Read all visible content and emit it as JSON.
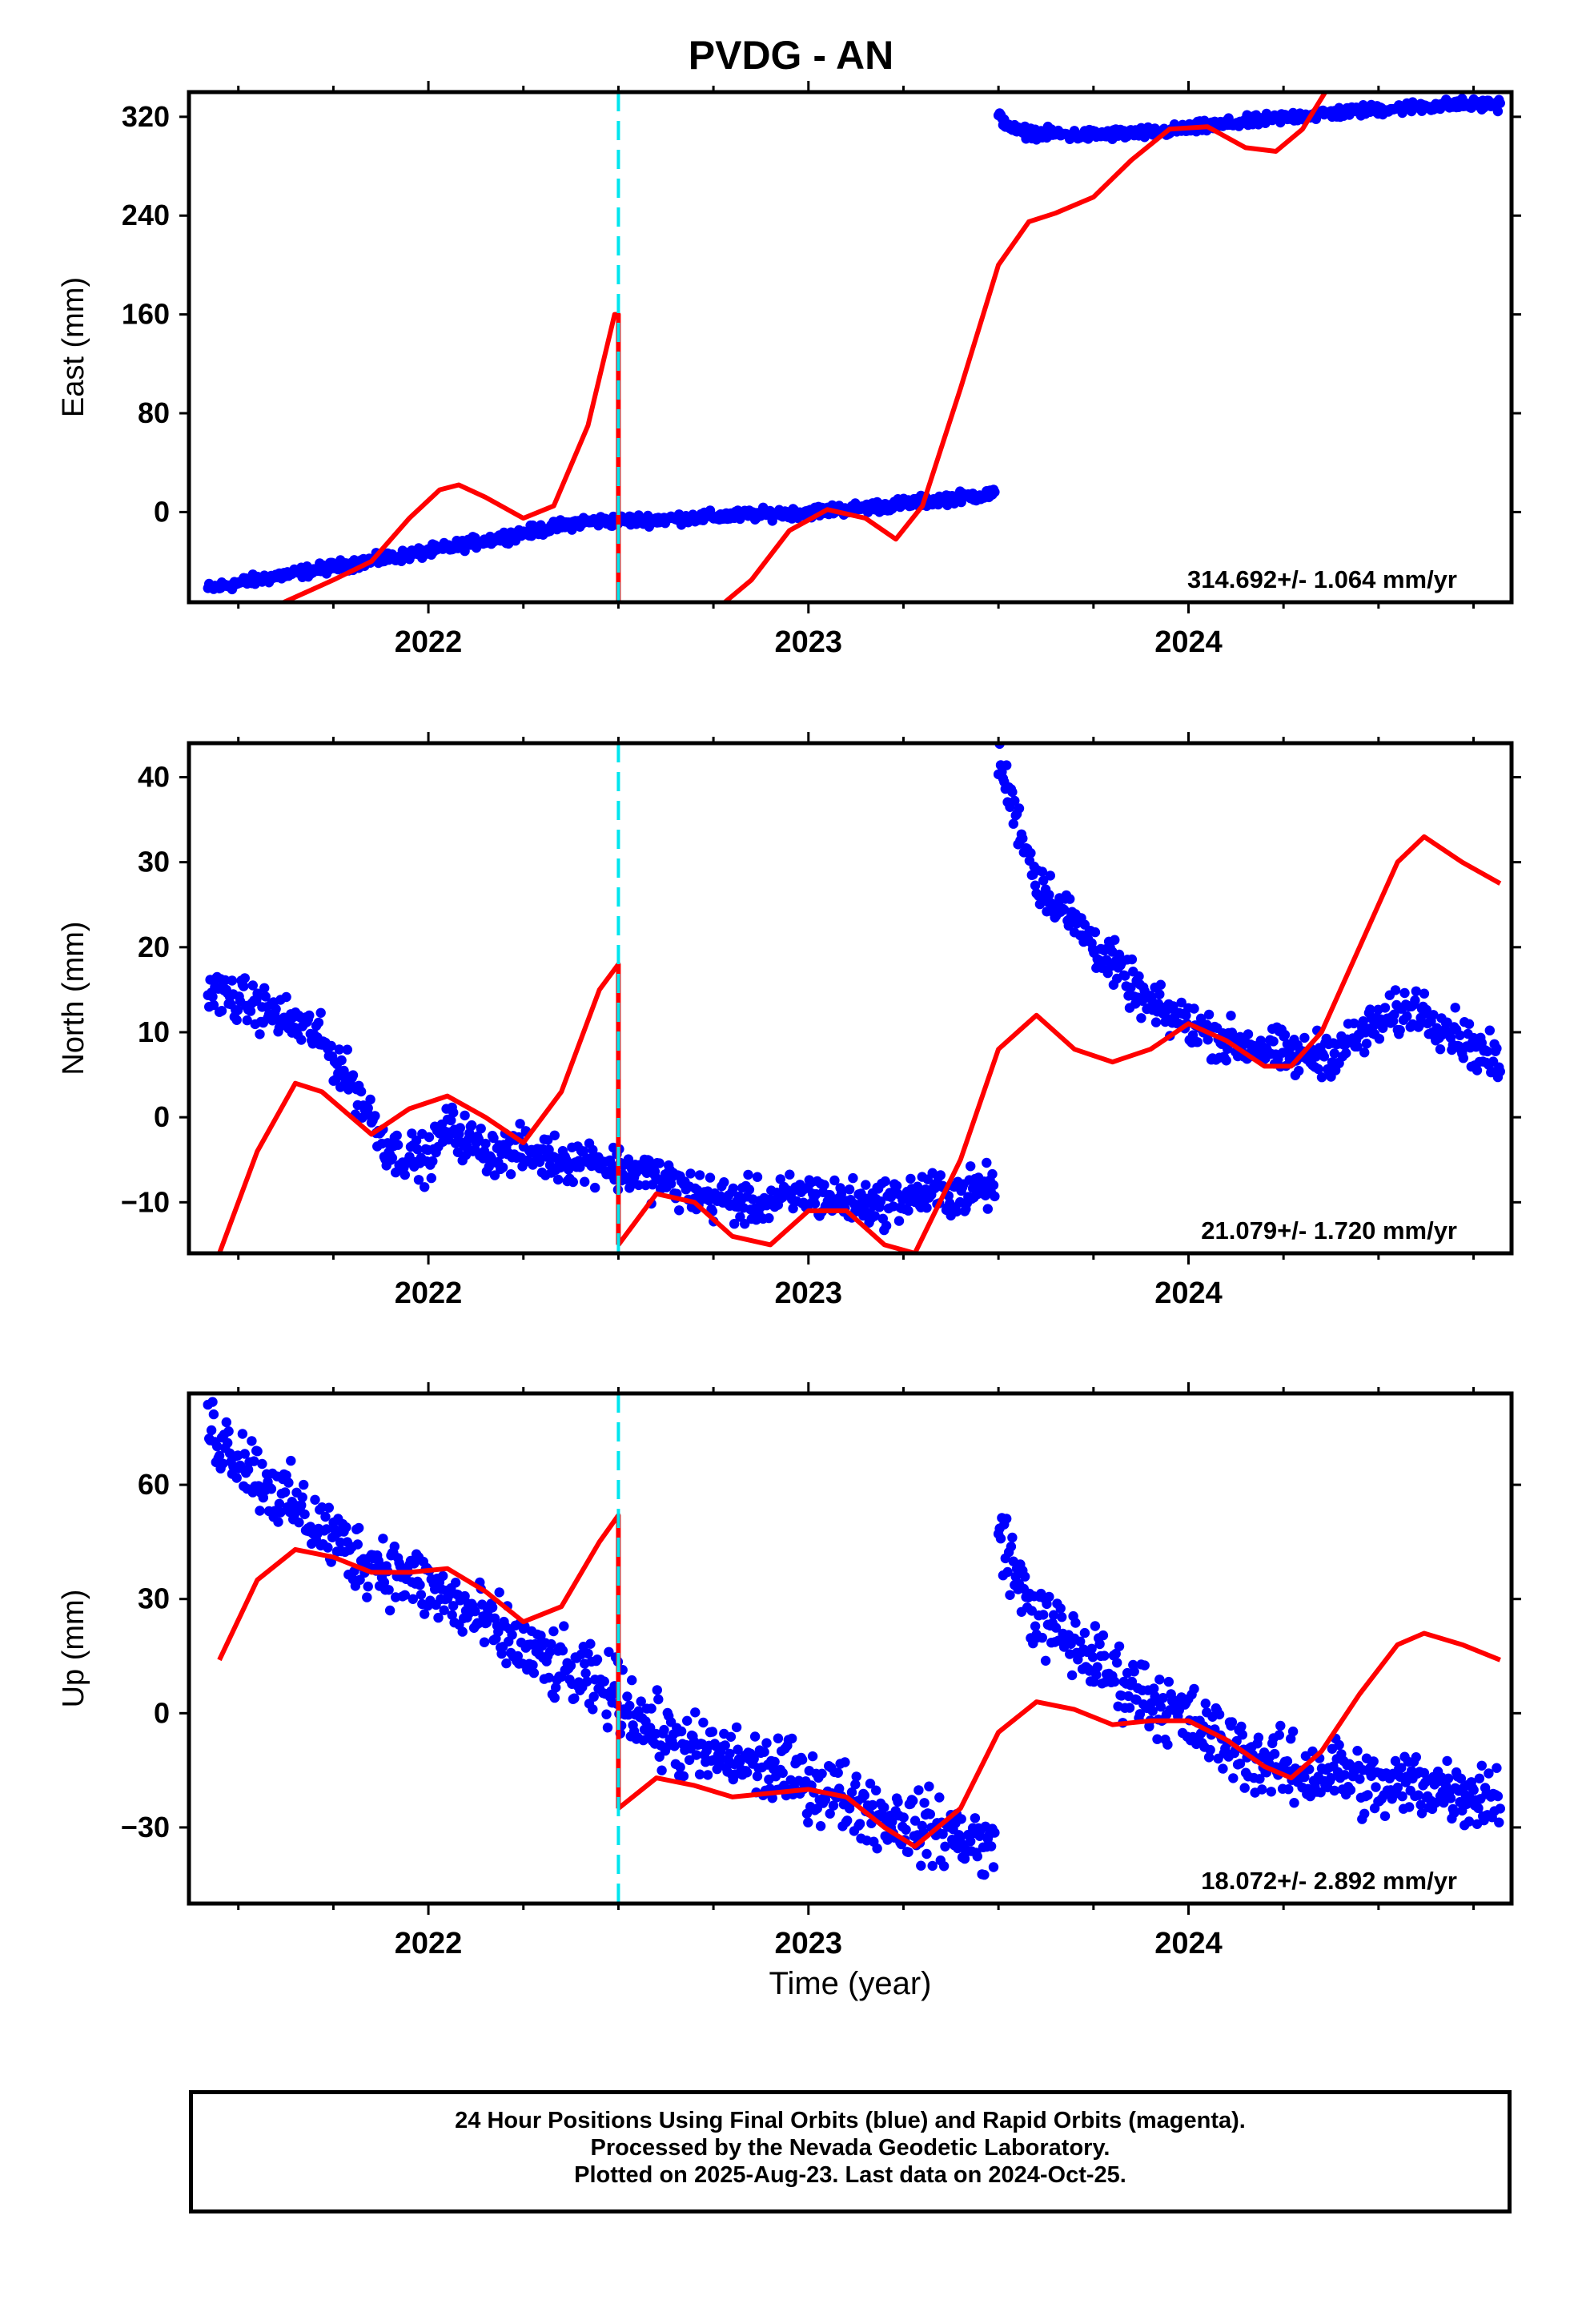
{
  "title": "PVDG - AN",
  "footer": {
    "line1": "24 Hour Positions Using Final Orbits (blue) and Rapid Orbits (magenta).",
    "line2": "Processed by the Nevada Geodetic Laboratory.",
    "line3": "Plotted on 2025-Aug-23. Last data on 2024-Oct-25."
  },
  "colors": {
    "data": "#0000ff",
    "model": "#ff0000",
    "event": "#00e5ee",
    "frame": "#000000"
  },
  "chart_data": [
    {
      "type": "scatter",
      "ylabel": "East (mm)",
      "rate_label": "314.692+/- 1.064 mm/yr",
      "xlim": [
        2021.37,
        2024.85
      ],
      "ylim": [
        -73,
        340
      ],
      "xticks": [
        "2022",
        "2023",
        "2024"
      ],
      "yticks": [
        0,
        80,
        160,
        240,
        320
      ],
      "event_x": 2022.5,
      "series": [
        {
          "kind": "points",
          "color": "#0000ff",
          "x": [
            2021.42,
            2021.6,
            2021.8,
            2022.0,
            2022.2,
            2022.4,
            2022.6,
            2022.8,
            2023.0,
            2023.2,
            2023.4,
            2023.49
          ],
          "y": [
            -62,
            -52,
            -42,
            -32,
            -20,
            -8,
            -6,
            -3,
            0,
            5,
            12,
            15
          ]
        },
        {
          "kind": "points",
          "color": "#0000ff",
          "x": [
            2023.5,
            2023.55,
            2023.7,
            2023.9,
            2024.1,
            2024.3,
            2024.5,
            2024.7,
            2024.82
          ],
          "y": [
            320,
            308,
            305,
            307,
            314,
            321,
            326,
            330,
            330
          ]
        },
        {
          "kind": "line",
          "color": "#ff0000",
          "x": [
            2021.62,
            2021.75,
            2021.85,
            2021.95,
            2022.03,
            2022.08,
            2022.15,
            2022.25,
            2022.33,
            2022.42,
            2022.49,
            2022.5,
            2022.5
          ],
          "y": [
            -73,
            -55,
            -40,
            -5,
            18,
            22,
            12,
            -5,
            5,
            70,
            160,
            160,
            -73
          ]
        },
        {
          "kind": "line",
          "color": "#ff0000",
          "x": [
            2022.78,
            2022.85,
            2022.95,
            2023.05,
            2023.15,
            2023.23,
            2023.3,
            2023.4,
            2023.5,
            2023.58,
            2023.65,
            2023.75,
            2023.85,
            2023.95,
            2024.05,
            2024.15,
            2024.23,
            2024.3,
            2024.37
          ],
          "y": [
            -73,
            -55,
            -15,
            2,
            -5,
            -22,
            5,
            100,
            200,
            235,
            242,
            255,
            285,
            310,
            312,
            295,
            292,
            310,
            345
          ]
        }
      ]
    },
    {
      "type": "scatter",
      "ylabel": "North (mm)",
      "rate_label": "21.079+/- 1.720 mm/yr",
      "xlim": [
        2021.37,
        2024.85
      ],
      "ylim": [
        -16,
        44
      ],
      "xticks": [
        "2022",
        "2023",
        "2024"
      ],
      "yticks": [
        -10,
        0,
        10,
        20,
        30,
        40
      ],
      "event_x": 2022.5,
      "series": [
        {
          "kind": "points",
          "color": "#0000ff",
          "x": [
            2021.42,
            2021.55,
            2021.7,
            2021.8,
            2021.9,
            2022.0,
            2022.05,
            2022.15,
            2022.25,
            2022.35,
            2022.45,
            2022.5,
            2022.6,
            2022.7,
            2022.8,
            2022.9,
            2023.0,
            2023.1,
            2023.2,
            2023.3,
            2023.4,
            2023.49
          ],
          "y": [
            15,
            13,
            10,
            4,
            -4,
            -5,
            -1,
            -4,
            -4,
            -5,
            -5,
            -6,
            -7,
            -9,
            -10,
            -10,
            -9,
            -10,
            -10,
            -9,
            -9,
            -8
          ]
        },
        {
          "kind": "points",
          "color": "#0000ff",
          "x": [
            2023.5,
            2023.55,
            2023.6,
            2023.7,
            2023.8,
            2023.9,
            2024.0,
            2024.1,
            2024.2,
            2024.3,
            2024.4,
            2024.5,
            2024.6,
            2024.7,
            2024.82
          ],
          "y": [
            42,
            35,
            28,
            23,
            18,
            13,
            11,
            9,
            8,
            7,
            8,
            11,
            13,
            10,
            6
          ]
        },
        {
          "kind": "line",
          "color": "#ff0000",
          "x": [
            2021.45,
            2021.55,
            2021.65,
            2021.72,
            2021.85,
            2021.95,
            2022.05,
            2022.15,
            2022.25,
            2022.35,
            2022.45,
            2022.5,
            2022.5
          ],
          "y": [
            -16,
            -4,
            4,
            3,
            -2,
            1,
            2.5,
            0,
            -3,
            3,
            15,
            18,
            -15
          ]
        },
        {
          "kind": "line",
          "color": "#ff0000",
          "x": [
            2022.5,
            2022.6,
            2022.7,
            2022.8,
            2022.9,
            2023.0,
            2023.1,
            2023.2,
            2023.28,
            2023.4,
            2023.5,
            2023.6,
            2023.7,
            2023.8,
            2023.9,
            2024.0,
            2024.1,
            2024.2,
            2024.27,
            2024.35,
            2024.45,
            2024.55,
            2024.62,
            2024.72,
            2024.82
          ],
          "y": [
            -15,
            -9,
            -10,
            -14,
            -15,
            -11,
            -11,
            -15,
            -16,
            -5,
            8,
            12,
            8,
            6.5,
            8,
            11,
            9,
            6,
            6,
            10,
            20,
            30,
            33,
            30,
            27.5
          ]
        }
      ]
    },
    {
      "type": "scatter",
      "ylabel": "Up (mm)",
      "rate_label": "18.072+/- 2.892 mm/yr",
      "xlim": [
        2021.37,
        2024.85
      ],
      "ylim": [
        -50,
        84
      ],
      "xticks": [
        "2022",
        "2023",
        "2024"
      ],
      "yticks": [
        -30,
        0,
        30,
        60
      ],
      "event_x": 2022.5,
      "series": [
        {
          "kind": "points",
          "color": "#0000ff",
          "x": [
            2021.42,
            2021.5,
            2021.6,
            2021.7,
            2021.8,
            2021.9,
            2022.0,
            2022.1,
            2022.2,
            2022.3,
            2022.4,
            2022.5,
            2022.6,
            2022.7,
            2022.8,
            2022.9,
            2023.0,
            2023.1,
            2023.2,
            2023.3,
            2023.4,
            2023.49
          ],
          "y": [
            75,
            68,
            58,
            50,
            42,
            38,
            33,
            27,
            20,
            14,
            9,
            5,
            -5,
            -10,
            -12,
            -15,
            -18,
            -22,
            -27,
            -30,
            -32,
            -36
          ]
        },
        {
          "kind": "points",
          "color": "#0000ff",
          "x": [
            2023.5,
            2023.55,
            2023.6,
            2023.7,
            2023.8,
            2023.9,
            2024.0,
            2024.1,
            2024.2,
            2024.3,
            2024.4,
            2024.5,
            2024.6,
            2024.7,
            2024.82
          ],
          "y": [
            50,
            35,
            25,
            18,
            10,
            4,
            -2,
            -8,
            -13,
            -16,
            -15,
            -20,
            -18,
            -20,
            -22
          ]
        },
        {
          "kind": "line",
          "color": "#ff0000",
          "x": [
            2021.45,
            2021.55,
            2021.65,
            2021.75,
            2021.85,
            2021.95,
            2022.05,
            2022.15,
            2022.25,
            2022.35,
            2022.45,
            2022.5,
            2022.5
          ],
          "y": [
            14,
            35,
            43,
            41,
            37,
            37,
            38,
            32,
            24,
            28,
            45,
            52,
            -25
          ]
        },
        {
          "kind": "line",
          "color": "#ff0000",
          "x": [
            2022.5,
            2022.6,
            2022.7,
            2022.8,
            2022.9,
            2023.0,
            2023.1,
            2023.2,
            2023.28,
            2023.4,
            2023.5,
            2023.6,
            2023.7,
            2023.8,
            2023.9,
            2024.0,
            2024.1,
            2024.2,
            2024.27,
            2024.35,
            2024.45,
            2024.55,
            2024.62,
            2024.72,
            2024.82
          ],
          "y": [
            -25,
            -17,
            -19,
            -22,
            -21,
            -20,
            -22,
            -30,
            -35,
            -25,
            -5,
            3,
            1,
            -3,
            -2,
            -2,
            -7,
            -14,
            -17,
            -10,
            5,
            18,
            21,
            18,
            14
          ]
        }
      ]
    }
  ]
}
